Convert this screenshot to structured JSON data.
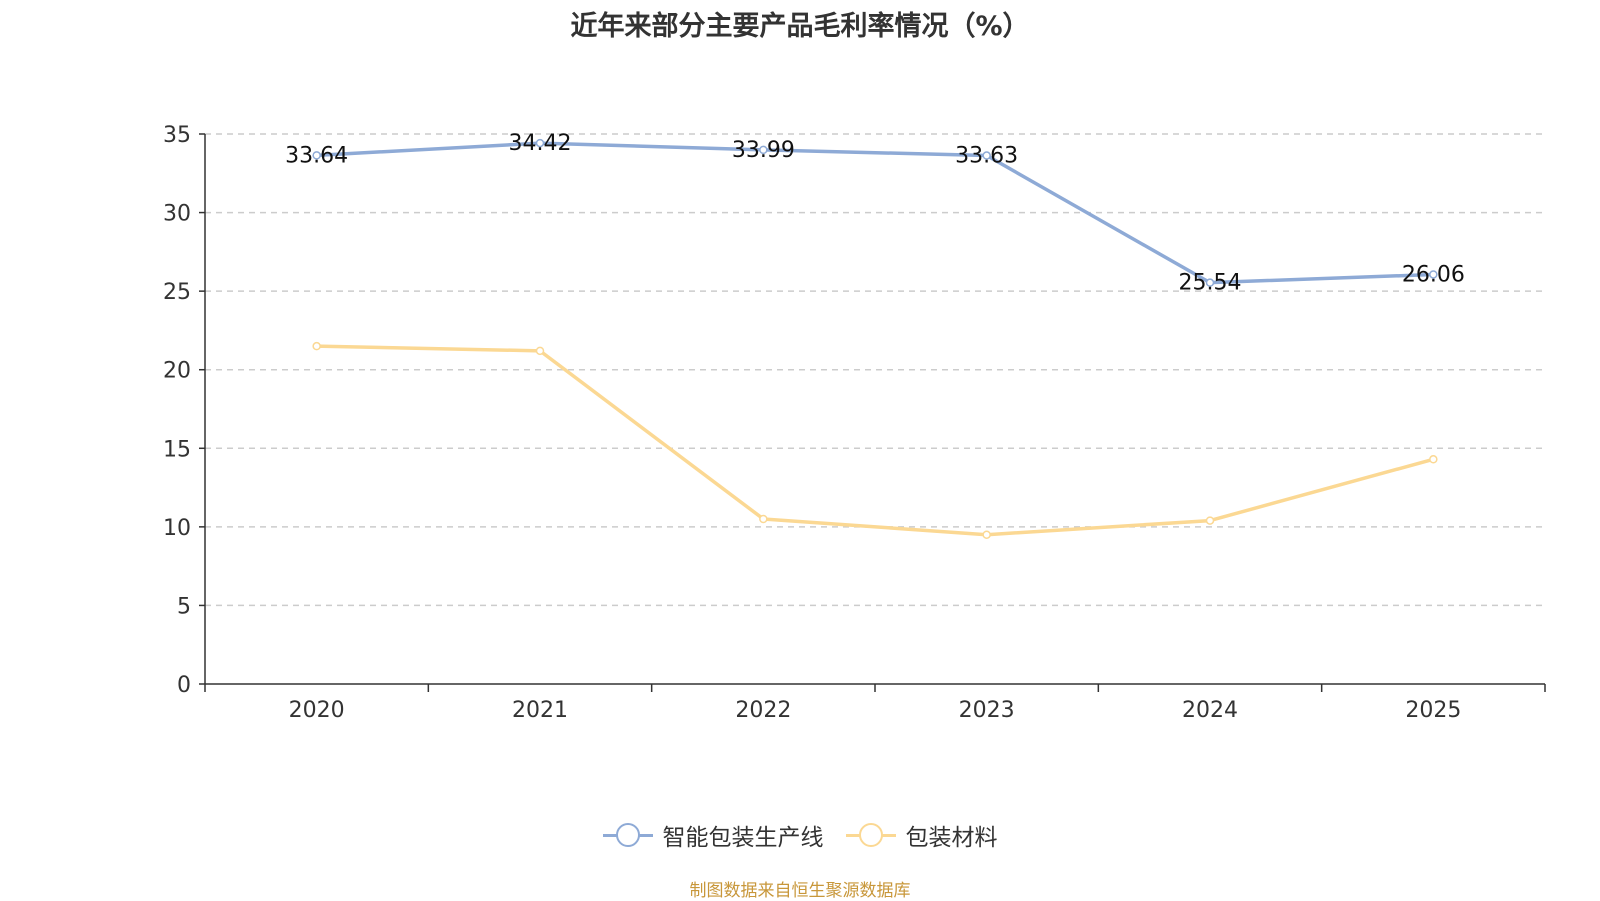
{
  "title": "近年来部分主要产品毛利率情况（%）",
  "source": "制图数据来自恒生聚源数据库",
  "chart_data": {
    "type": "line",
    "title": "近年来部分主要产品毛利率情况（%）",
    "categories": [
      "2020",
      "2021",
      "2022",
      "2023",
      "2024",
      "2025"
    ],
    "ylim": [
      0,
      35
    ],
    "yticks": [
      0,
      5,
      10,
      15,
      20,
      25,
      30,
      35
    ],
    "grid": true,
    "legend_position": "bottom",
    "series": [
      {
        "name": "智能包装生产线",
        "color": "#8eaad6",
        "values": [
          33.64,
          34.42,
          33.99,
          33.63,
          25.54,
          26.06
        ],
        "show_labels": true
      },
      {
        "name": "包装材料",
        "color": "#fbd893",
        "values": [
          21.5,
          21.2,
          10.5,
          9.5,
          10.4,
          14.3
        ],
        "show_labels": false
      }
    ]
  }
}
